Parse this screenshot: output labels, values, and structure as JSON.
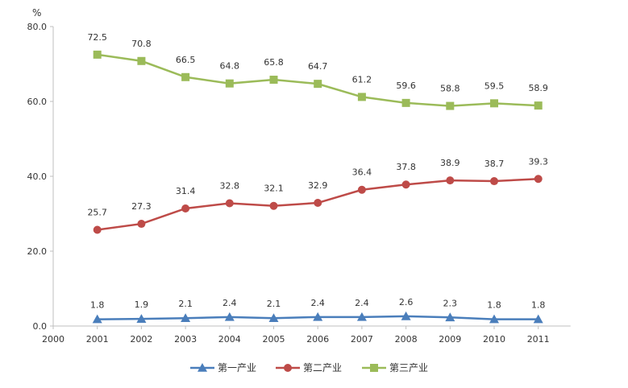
{
  "chart_data": {
    "type": "line",
    "ylabel": "%",
    "ylim": [
      0,
      80
    ],
    "yticks": [
      "0.0",
      "20.0",
      "40.0",
      "60.0",
      "80.0"
    ],
    "categories": [
      "2000",
      "2001",
      "2002",
      "2003",
      "2004",
      "2005",
      "2006",
      "2007",
      "2008",
      "2009",
      "2010",
      "2011"
    ],
    "grid": false,
    "legend_position": "bottom",
    "series": [
      {
        "name": "第一产业",
        "color": "#4a7ebb",
        "marker": "triangle",
        "x": [
          "2001",
          "2002",
          "2003",
          "2004",
          "2005",
          "2006",
          "2007",
          "2008",
          "2009",
          "2010",
          "2011"
        ],
        "values": [
          1.8,
          1.9,
          2.1,
          2.4,
          2.1,
          2.4,
          2.4,
          2.6,
          2.3,
          1.8,
          1.8
        ],
        "labels": [
          "1.8",
          "1.9",
          "2.1",
          "2.4",
          "2.1",
          "2.4",
          "2.4",
          "2.6",
          "2.3",
          "1.8",
          "1.8"
        ]
      },
      {
        "name": "第二产业",
        "color": "#be4b48",
        "marker": "circle",
        "x": [
          "2001",
          "2002",
          "2003",
          "2004",
          "2005",
          "2006",
          "2007",
          "2008",
          "2009",
          "2010",
          "2011"
        ],
        "values": [
          25.7,
          27.3,
          31.4,
          32.8,
          32.1,
          32.9,
          36.4,
          37.8,
          38.9,
          38.7,
          39.3
        ],
        "labels": [
          "25.7",
          "27.3",
          "31.4",
          "32.8",
          "32.1",
          "32.9",
          "36.4",
          "37.8",
          "38.9",
          "38.7",
          "39.3"
        ]
      },
      {
        "name": "第三产业",
        "color": "#9bbb59",
        "marker": "square",
        "x": [
          "2001",
          "2002",
          "2003",
          "2004",
          "2005",
          "2006",
          "2007",
          "2008",
          "2009",
          "2010",
          "2011"
        ],
        "values": [
          72.5,
          70.8,
          66.5,
          64.8,
          65.8,
          64.7,
          61.2,
          59.6,
          58.8,
          59.5,
          58.9
        ],
        "labels": [
          "72.5",
          "70.8",
          "66.5",
          "64.8",
          "65.8",
          "64.7",
          "61.2",
          "59.6",
          "58.8",
          "59.5",
          "58.9"
        ]
      }
    ]
  }
}
